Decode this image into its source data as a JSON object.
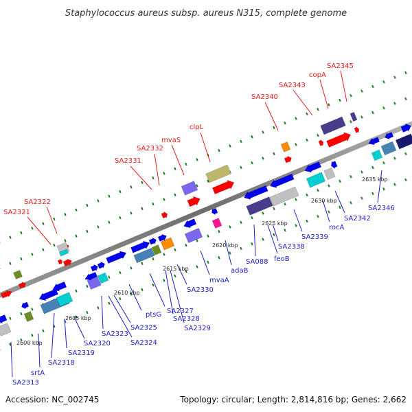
{
  "title": "Staphylococcus aureus subsp. aureus N315, complete genome",
  "footer": {
    "accession": "Accession: NC_002745",
    "topology": "Topology: circular; Length: 2,814,816 bp; Genes: 2,662"
  },
  "colors": {
    "label_top": "#e81a1a",
    "label_bottom": "#1c1cc4",
    "dots": "#1a7a1a",
    "backbone": "#8a8a8a"
  },
  "tick_labels": [
    "2600 kbp",
    "2605 kbp",
    "2610 kbp",
    "2615 kbp",
    "2620 kbp",
    "2625 kbp",
    "2630 kbp",
    "2635 kbp"
  ],
  "top_labels": [
    "SA2321",
    "SA2322",
    "SA2331",
    "SA2332",
    "mvaS",
    "clpL",
    "SA2340",
    "SA2343",
    "copA",
    "SA2345"
  ],
  "bottom_labels": [
    "SA2313",
    "srtA",
    "SA2318",
    "SA2319",
    "SA2320",
    "SA2323",
    "SA2324",
    "SA2325",
    "ptsG",
    "SA2327",
    "SA2328",
    "SA2329",
    "SA2330",
    "mvaA",
    "adaB",
    "SA088",
    "feoB",
    "SA2338",
    "SA2339",
    "rocA",
    "SA2342",
    "SA2346"
  ]
}
